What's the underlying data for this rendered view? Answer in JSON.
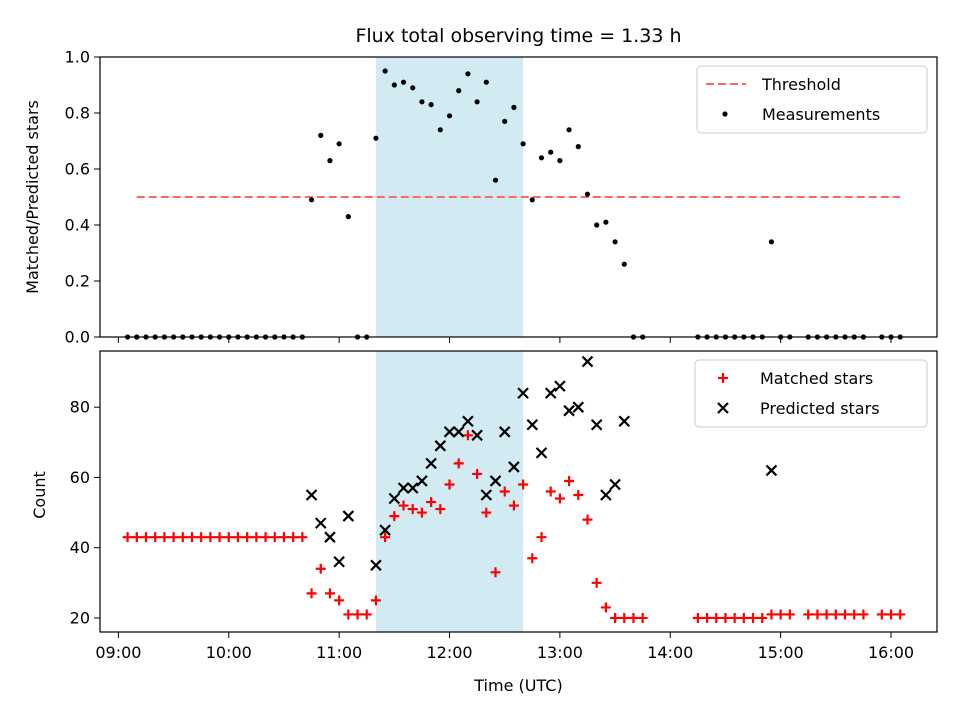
{
  "chart_data": [
    {
      "type": "scatter",
      "title": "Flux total observing time = 1.33 h",
      "ylabel": "Matched/Predicted stars",
      "xlabel": "",
      "xlim": [
        "08:50",
        "16:25"
      ],
      "ylim": [
        0,
        1.0
      ],
      "yticks": [
        0.0,
        0.2,
        0.4,
        0.6,
        0.8,
        1.0
      ],
      "ytick_labels": [
        "0.0",
        "0.2",
        "0.4",
        "0.6",
        "0.8",
        "1.0"
      ],
      "highlight_span": {
        "start": "11:20",
        "end": "12:40",
        "color": "#add8e6"
      },
      "legend": {
        "position": "top-right",
        "entries": [
          "Threshold",
          "Measurements"
        ]
      },
      "threshold": {
        "name": "Threshold",
        "y": 0.5,
        "x_start": "09:10",
        "x_end": "16:05",
        "color": "#ff6666",
        "style": "dashed"
      },
      "series": [
        {
          "name": "Measurements",
          "color": "#000000",
          "points": [
            [
              "09:05",
              0
            ],
            [
              "09:10",
              0
            ],
            [
              "09:15",
              0
            ],
            [
              "09:20",
              0
            ],
            [
              "09:25",
              0
            ],
            [
              "09:30",
              0
            ],
            [
              "09:35",
              0
            ],
            [
              "09:40",
              0
            ],
            [
              "09:45",
              0
            ],
            [
              "09:50",
              0
            ],
            [
              "09:55",
              0
            ],
            [
              "10:00",
              0
            ],
            [
              "10:05",
              0
            ],
            [
              "10:10",
              0
            ],
            [
              "10:15",
              0
            ],
            [
              "10:20",
              0
            ],
            [
              "10:25",
              0
            ],
            [
              "10:30",
              0
            ],
            [
              "10:35",
              0
            ],
            [
              "10:40",
              0
            ],
            [
              "10:45",
              0.49
            ],
            [
              "10:50",
              0.72
            ],
            [
              "10:55",
              0.63
            ],
            [
              "11:00",
              0.69
            ],
            [
              "11:05",
              0.43
            ],
            [
              "11:10",
              0
            ],
            [
              "11:15",
              0
            ],
            [
              "11:20",
              0.71
            ],
            [
              "11:25",
              0.95
            ],
            [
              "11:30",
              0.9
            ],
            [
              "11:35",
              0.91
            ],
            [
              "11:40",
              0.89
            ],
            [
              "11:45",
              0.84
            ],
            [
              "11:50",
              0.83
            ],
            [
              "11:55",
              0.74
            ],
            [
              "12:00",
              0.79
            ],
            [
              "12:05",
              0.88
            ],
            [
              "12:10",
              0.94
            ],
            [
              "12:15",
              0.84
            ],
            [
              "12:20",
              0.91
            ],
            [
              "12:25",
              0.56
            ],
            [
              "12:30",
              0.77
            ],
            [
              "12:35",
              0.82
            ],
            [
              "12:40",
              0.69
            ],
            [
              "12:45",
              0.49
            ],
            [
              "12:50",
              0.64
            ],
            [
              "12:55",
              0.66
            ],
            [
              "13:00",
              0.63
            ],
            [
              "13:05",
              0.74
            ],
            [
              "13:10",
              0.68
            ],
            [
              "13:15",
              0.51
            ],
            [
              "13:20",
              0.4
            ],
            [
              "13:25",
              0.41
            ],
            [
              "13:30",
              0.34
            ],
            [
              "13:35",
              0.26
            ],
            [
              "13:40",
              0
            ],
            [
              "13:45",
              0
            ],
            [
              "14:15",
              0
            ],
            [
              "14:20",
              0
            ],
            [
              "14:25",
              0
            ],
            [
              "14:30",
              0
            ],
            [
              "14:35",
              0
            ],
            [
              "14:40",
              0
            ],
            [
              "14:45",
              0
            ],
            [
              "14:50",
              0
            ],
            [
              "14:55",
              0.34
            ],
            [
              "15:00",
              0
            ],
            [
              "15:05",
              0
            ],
            [
              "15:15",
              0
            ],
            [
              "15:20",
              0
            ],
            [
              "15:25",
              0
            ],
            [
              "15:30",
              0
            ],
            [
              "15:35",
              0
            ],
            [
              "15:40",
              0
            ],
            [
              "15:45",
              0
            ],
            [
              "15:55",
              0
            ],
            [
              "16:00",
              0
            ],
            [
              "16:05",
              0
            ]
          ]
        }
      ]
    },
    {
      "type": "scatter",
      "title": "",
      "ylabel": "Count",
      "xlabel": "Time (UTC)",
      "xlim": [
        "08:50",
        "16:25"
      ],
      "ylim": [
        16,
        96
      ],
      "yticks": [
        20,
        40,
        60,
        80
      ],
      "ytick_labels": [
        "20",
        "40",
        "60",
        "80"
      ],
      "xticks": [
        "09:00",
        "10:00",
        "11:00",
        "12:00",
        "13:00",
        "14:00",
        "15:00",
        "16:00"
      ],
      "xtick_labels": [
        "09:00",
        "10:00",
        "11:00",
        "12:00",
        "13:00",
        "14:00",
        "15:00",
        "16:00"
      ],
      "highlight_span": {
        "start": "11:20",
        "end": "12:40",
        "color": "#add8e6"
      },
      "legend": {
        "position": "top-right",
        "entries": [
          "Matched stars",
          "Predicted stars"
        ]
      },
      "series": [
        {
          "name": "Matched stars",
          "marker": "plus",
          "color": "#ff0000",
          "points": [
            [
              "09:05",
              43
            ],
            [
              "09:10",
              43
            ],
            [
              "09:15",
              43
            ],
            [
              "09:20",
              43
            ],
            [
              "09:25",
              43
            ],
            [
              "09:30",
              43
            ],
            [
              "09:35",
              43
            ],
            [
              "09:40",
              43
            ],
            [
              "09:45",
              43
            ],
            [
              "09:50",
              43
            ],
            [
              "09:55",
              43
            ],
            [
              "10:00",
              43
            ],
            [
              "10:05",
              43
            ],
            [
              "10:10",
              43
            ],
            [
              "10:15",
              43
            ],
            [
              "10:20",
              43
            ],
            [
              "10:25",
              43
            ],
            [
              "10:30",
              43
            ],
            [
              "10:35",
              43
            ],
            [
              "10:40",
              43
            ],
            [
              "10:45",
              27
            ],
            [
              "10:50",
              34
            ],
            [
              "10:55",
              27
            ],
            [
              "11:00",
              25
            ],
            [
              "11:05",
              21
            ],
            [
              "11:10",
              21
            ],
            [
              "11:15",
              21
            ],
            [
              "11:20",
              25
            ],
            [
              "11:25",
              43
            ],
            [
              "11:30",
              49
            ],
            [
              "11:35",
              52
            ],
            [
              "11:40",
              51
            ],
            [
              "11:45",
              50
            ],
            [
              "11:50",
              53
            ],
            [
              "11:55",
              51
            ],
            [
              "12:00",
              58
            ],
            [
              "12:05",
              64
            ],
            [
              "12:10",
              72
            ],
            [
              "12:15",
              61
            ],
            [
              "12:20",
              50
            ],
            [
              "12:25",
              33
            ],
            [
              "12:30",
              56
            ],
            [
              "12:35",
              52
            ],
            [
              "12:40",
              58
            ],
            [
              "12:45",
              37
            ],
            [
              "12:50",
              43
            ],
            [
              "12:55",
              56
            ],
            [
              "13:00",
              54
            ],
            [
              "13:05",
              59
            ],
            [
              "13:10",
              55
            ],
            [
              "13:15",
              48
            ],
            [
              "13:20",
              30
            ],
            [
              "13:25",
              23
            ],
            [
              "13:30",
              20
            ],
            [
              "13:35",
              20
            ],
            [
              "13:40",
              20
            ],
            [
              "13:45",
              20
            ],
            [
              "14:15",
              20
            ],
            [
              "14:20",
              20
            ],
            [
              "14:25",
              20
            ],
            [
              "14:30",
              20
            ],
            [
              "14:35",
              20
            ],
            [
              "14:40",
              20
            ],
            [
              "14:45",
              20
            ],
            [
              "14:50",
              20
            ],
            [
              "14:55",
              21
            ],
            [
              "15:00",
              21
            ],
            [
              "15:05",
              21
            ],
            [
              "15:15",
              21
            ],
            [
              "15:20",
              21
            ],
            [
              "15:25",
              21
            ],
            [
              "15:30",
              21
            ],
            [
              "15:35",
              21
            ],
            [
              "15:40",
              21
            ],
            [
              "15:45",
              21
            ],
            [
              "15:55",
              21
            ],
            [
              "16:00",
              21
            ],
            [
              "16:05",
              21
            ]
          ]
        },
        {
          "name": "Predicted stars",
          "marker": "x",
          "color": "#000000",
          "points": [
            [
              "10:45",
              55
            ],
            [
              "10:50",
              47
            ],
            [
              "10:55",
              43
            ],
            [
              "11:00",
              36
            ],
            [
              "11:05",
              49
            ],
            [
              "11:20",
              35
            ],
            [
              "11:25",
              45
            ],
            [
              "11:30",
              54
            ],
            [
              "11:35",
              57
            ],
            [
              "11:40",
              57
            ],
            [
              "11:45",
              59
            ],
            [
              "11:50",
              64
            ],
            [
              "11:55",
              69
            ],
            [
              "12:00",
              73
            ],
            [
              "12:05",
              73
            ],
            [
              "12:10",
              76
            ],
            [
              "12:15",
              72
            ],
            [
              "12:20",
              55
            ],
            [
              "12:25",
              59
            ],
            [
              "12:30",
              73
            ],
            [
              "12:35",
              63
            ],
            [
              "12:40",
              84
            ],
            [
              "12:45",
              75
            ],
            [
              "12:50",
              67
            ],
            [
              "12:55",
              84
            ],
            [
              "13:00",
              86
            ],
            [
              "13:05",
              79
            ],
            [
              "13:10",
              80
            ],
            [
              "13:15",
              93
            ],
            [
              "13:20",
              75
            ],
            [
              "13:25",
              55
            ],
            [
              "13:30",
              58
            ],
            [
              "13:35",
              76
            ],
            [
              "14:55",
              62
            ]
          ]
        }
      ]
    }
  ]
}
